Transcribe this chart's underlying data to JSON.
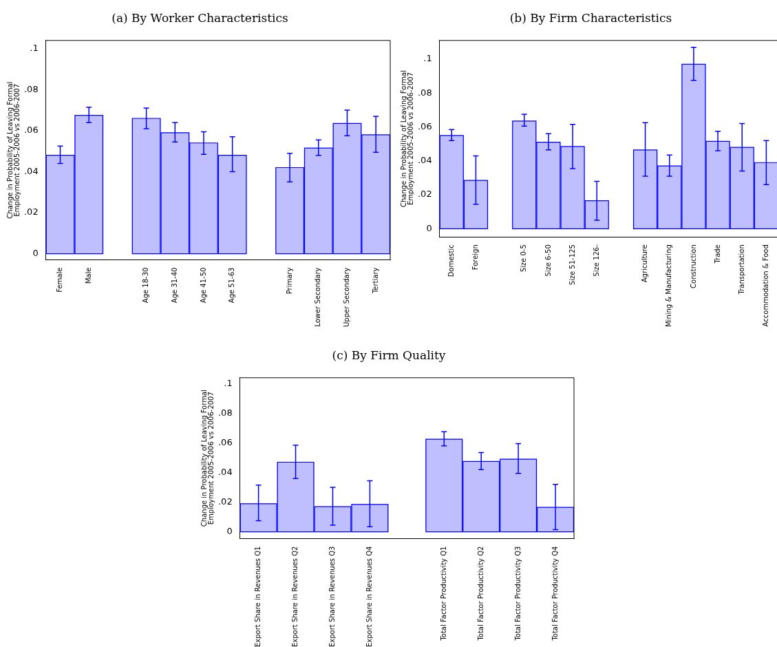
{
  "chart_data": [
    {
      "type": "bar",
      "title": "(a) By Worker Characteristics",
      "ylabel": "Change in Probability of Leaving Formal\nEmployment 2005-2006 vs 2006-2007",
      "categories": [
        "Female",
        "Male",
        null,
        "Age 18-30",
        "Age 31-40",
        "Age 41-50",
        "Age 51-63",
        null,
        "Primary",
        "Lower Secondary",
        "Upper Secondary",
        "Tertiary"
      ],
      "values": [
        0.048,
        0.0675,
        null,
        0.066,
        0.059,
        0.054,
        0.048,
        null,
        0.042,
        0.0515,
        0.0635,
        0.058
      ],
      "errors": [
        [
          0.044,
          0.0525
        ],
        [
          0.064,
          0.0715
        ],
        null,
        [
          0.061,
          0.071
        ],
        [
          0.0545,
          0.064
        ],
        [
          0.0485,
          0.0595
        ],
        [
          0.04,
          0.057
        ],
        null,
        [
          0.035,
          0.049
        ],
        [
          0.048,
          0.0555
        ],
        [
          0.0575,
          0.07
        ],
        [
          0.0495,
          0.067
        ]
      ],
      "color": "#bfbfff",
      "ylim": [
        -0.003,
        0.104
      ],
      "yticks": [
        {
          "value": 0,
          "label": "0"
        },
        {
          "value": 0.02,
          "label": ".02"
        },
        {
          "value": 0.04,
          "label": ".04"
        },
        {
          "value": 0.06,
          "label": ".06"
        },
        {
          "value": 0.08,
          "label": ".08"
        },
        {
          "value": 0.1,
          "label": ".1"
        }
      ],
      "grid": false,
      "legend": false
    },
    {
      "type": "bar",
      "title": "(b) By Firm Characteristics",
      "ylabel": "Change in Probability of Leaving Formal\nEmployment 2005-2006 vs 2006-2007",
      "categories": [
        "Domestic",
        "Foreign",
        null,
        "Size 0-5",
        "Size 6-50",
        "Size 51-125",
        "Size 126-",
        null,
        "Agriculture",
        "Mining & Manufacturing",
        "Construction",
        "Trade",
        "Transportation",
        "Accommodation & Food"
      ],
      "values": [
        0.055,
        0.0285,
        null,
        0.0635,
        0.051,
        0.0485,
        0.0165,
        null,
        0.0465,
        0.037,
        0.097,
        0.0515,
        0.048,
        0.039
      ],
      "errors": [
        [
          0.052,
          0.0585
        ],
        [
          0.0145,
          0.043
        ],
        null,
        [
          0.0605,
          0.0675
        ],
        [
          0.0465,
          0.056
        ],
        [
          0.0355,
          0.0615
        ],
        [
          0.005,
          0.028
        ],
        null,
        [
          0.031,
          0.0625
        ],
        [
          0.031,
          0.0435
        ],
        [
          0.0875,
          0.107
        ],
        [
          0.046,
          0.0575
        ],
        [
          0.034,
          0.062
        ],
        [
          0.026,
          0.052
        ]
      ],
      "color": "#bfbfff",
      "ylim": [
        -0.0048,
        0.111
      ],
      "yticks": [
        {
          "value": 0,
          "label": "0"
        },
        {
          "value": 0.02,
          "label": ".02"
        },
        {
          "value": 0.04,
          "label": ".04"
        },
        {
          "value": 0.06,
          "label": ".06"
        },
        {
          "value": 0.08,
          "label": ".08"
        },
        {
          "value": 0.1,
          "label": ".1"
        }
      ],
      "grid": false,
      "legend": false
    },
    {
      "type": "bar",
      "title": "(c) By Firm Quality",
      "ylabel": "Change in Probability of Leaving Formal\nEmployment 2005-2006 vs 2006-2007",
      "categories": [
        "Export Share in Revenues Q1",
        "Export Share in Revenues Q2",
        "Export Share in Revenues Q3",
        "Export Share in Revenues Q4",
        null,
        "Total Factor Productivity Q1",
        "Total Factor Productivity Q2",
        "Total Factor Productivity Q3",
        "Total Factor Productivity Q4"
      ],
      "values": [
        0.019,
        0.047,
        0.017,
        0.0185,
        null,
        0.0625,
        0.0475,
        0.049,
        0.0165
      ],
      "errors": [
        [
          0.0075,
          0.0315
        ],
        [
          0.036,
          0.0585
        ],
        [
          0.0045,
          0.03
        ],
        [
          0.0035,
          0.0345
        ],
        null,
        [
          0.058,
          0.0675
        ],
        [
          0.042,
          0.0535
        ],
        [
          0.0395,
          0.0595
        ],
        [
          0.0015,
          0.032
        ]
      ],
      "color": "#bfbfff",
      "ylim": [
        -0.0046,
        0.104
      ],
      "yticks": [
        {
          "value": 0,
          "label": "0"
        },
        {
          "value": 0.02,
          "label": ".02"
        },
        {
          "value": 0.04,
          "label": ".04"
        },
        {
          "value": 0.06,
          "label": ".06"
        },
        {
          "value": 0.08,
          "label": ".08"
        },
        {
          "value": 0.1,
          "label": ".1"
        }
      ],
      "grid": false,
      "legend": false
    }
  ]
}
